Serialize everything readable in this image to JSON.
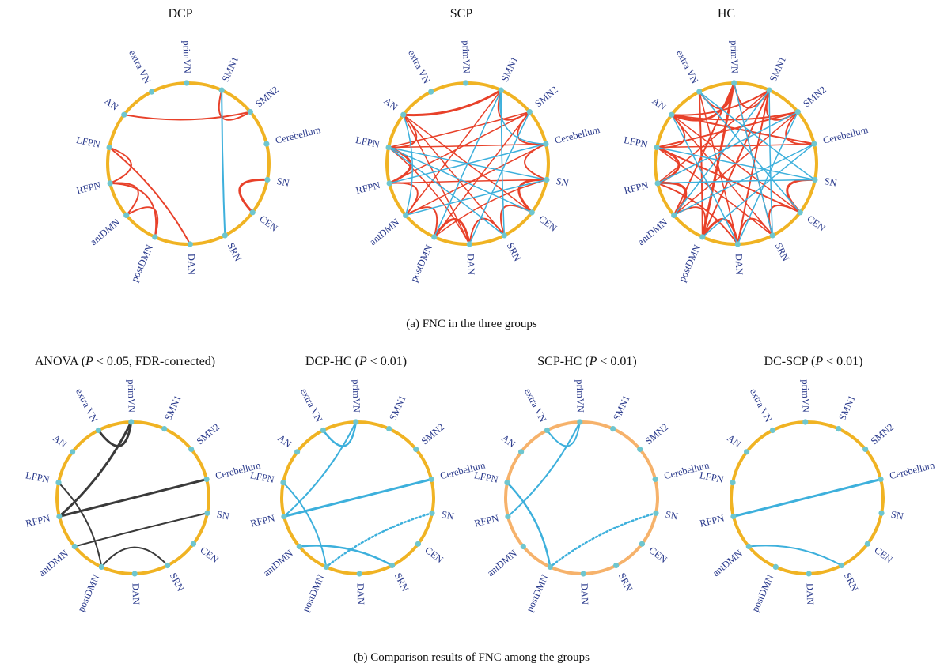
{
  "node_labels": [
    "extra VN",
    "primVN",
    "SMN1",
    "SMN2",
    "Cerebellum",
    "SN",
    "CEN",
    "SRN",
    "DAN",
    "postDMN",
    "antDMN",
    "RFPN",
    "LFPN",
    "AN"
  ],
  "node_keys": [
    "extraVN",
    "primVN",
    "SMN1",
    "SMN2",
    "Cerebellum",
    "SN",
    "CEN",
    "SRN",
    "DAN",
    "postDMN",
    "antDMN",
    "RFPN",
    "LFPN",
    "AN"
  ],
  "colors": {
    "ring": "#f0b323",
    "ring_light": "#f6b26b",
    "node": "#6ec6cf",
    "positive": "#e8412a",
    "negative": "#3db0dc",
    "anova": "#3a3a3a",
    "label": "#2a3a8c"
  },
  "captions": {
    "a": "(a) FNC in the three groups",
    "b": "(b) Comparison results of FNC among the groups"
  },
  "panels": [
    {
      "id": "dcp",
      "title": [
        {
          "t": "DCP"
        }
      ],
      "ring": "ring",
      "edges": [
        [
          "AN",
          "SMN2",
          "positive",
          2
        ],
        [
          "SMN1",
          "SMN2",
          "positive",
          2
        ],
        [
          "SMN1",
          "SRN",
          "negative",
          2
        ],
        [
          "SN",
          "CEN",
          "positive",
          3
        ],
        [
          "LFPN",
          "RFPN",
          "positive",
          2
        ],
        [
          "LFPN",
          "DAN",
          "positive",
          2
        ],
        [
          "RFPN",
          "antDMN",
          "positive",
          2
        ],
        [
          "antDMN",
          "postDMN",
          "positive",
          2
        ],
        [
          "RFPN",
          "postDMN",
          "positive",
          2
        ]
      ]
    },
    {
      "id": "scp",
      "title": [
        {
          "t": "SCP"
        }
      ],
      "ring": "ring",
      "edges": [
        [
          "AN",
          "SMN1",
          "positive",
          3
        ],
        [
          "SMN1",
          "SMN2",
          "positive",
          2
        ],
        [
          "SMN2",
          "Cerebellum",
          "positive",
          2
        ],
        [
          "Cerebellum",
          "SN",
          "positive",
          2
        ],
        [
          "SN",
          "CEN",
          "positive",
          3
        ],
        [
          "CEN",
          "SRN",
          "positive",
          2
        ],
        [
          "SRN",
          "DAN",
          "positive",
          2
        ],
        [
          "DAN",
          "postDMN",
          "positive",
          3
        ],
        [
          "postDMN",
          "antDMN",
          "positive",
          2
        ],
        [
          "antDMN",
          "RFPN",
          "positive",
          2
        ],
        [
          "RFPN",
          "LFPN",
          "positive",
          3
        ],
        [
          "LFPN",
          "AN",
          "positive",
          2
        ],
        [
          "AN",
          "SRN",
          "positive",
          1.5
        ],
        [
          "AN",
          "CEN",
          "positive",
          1.5
        ],
        [
          "LFPN",
          "Cerebellum",
          "positive",
          1.5
        ],
        [
          "LFPN",
          "SMN2",
          "positive",
          1.5
        ],
        [
          "RFPN",
          "SN",
          "positive",
          1.5
        ],
        [
          "RFPN",
          "SMN2",
          "positive",
          1.5
        ],
        [
          "antDMN",
          "Cerebellum",
          "positive",
          1.5
        ],
        [
          "antDMN",
          "SMN1",
          "positive",
          1.5
        ],
        [
          "postDMN",
          "SMN2",
          "positive",
          1.5
        ],
        [
          "postDMN",
          "SN",
          "positive",
          1.5
        ],
        [
          "DAN",
          "AN",
          "positive",
          1.5
        ],
        [
          "DAN",
          "LFPN",
          "positive",
          1.5
        ],
        [
          "SRN",
          "SMN1",
          "negative",
          1.5
        ],
        [
          "SRN",
          "LFPN",
          "negative",
          1.5
        ],
        [
          "LFPN",
          "SN",
          "negative",
          1.5
        ],
        [
          "AN",
          "antDMN",
          "negative",
          1.5
        ],
        [
          "SMN1",
          "postDMN",
          "negative",
          1.5
        ],
        [
          "Cerebellum",
          "RFPN",
          "negative",
          1.5
        ],
        [
          "CEN",
          "LFPN",
          "negative",
          1.5
        ],
        [
          "SN",
          "antDMN",
          "negative",
          1.5
        ],
        [
          "SMN1",
          "Cerebellum",
          "negative",
          1.5
        ],
        [
          "DAN",
          "SMN2",
          "negative",
          1.5
        ]
      ]
    },
    {
      "id": "hc",
      "title": [
        {
          "t": "HC"
        }
      ],
      "ring": "ring",
      "edges": [
        [
          "AN",
          "primVN",
          "positive",
          3
        ],
        [
          "AN",
          "SMN1",
          "positive",
          2
        ],
        [
          "AN",
          "SMN2",
          "positive",
          2
        ],
        [
          "AN",
          "Cerebellum",
          "positive",
          2
        ],
        [
          "extraVN",
          "primVN",
          "positive",
          2
        ],
        [
          "primVN",
          "SMN1",
          "positive",
          2
        ],
        [
          "SMN1",
          "SMN2",
          "positive",
          2
        ],
        [
          "SMN2",
          "Cerebellum",
          "positive",
          2
        ],
        [
          "SN",
          "CEN",
          "positive",
          3
        ],
        [
          "CEN",
          "SRN",
          "positive",
          2
        ],
        [
          "SRN",
          "DAN",
          "positive",
          2
        ],
        [
          "DAN",
          "postDMN",
          "positive",
          3
        ],
        [
          "postDMN",
          "antDMN",
          "positive",
          2
        ],
        [
          "antDMN",
          "RFPN",
          "positive",
          3
        ],
        [
          "RFPN",
          "LFPN",
          "positive",
          3
        ],
        [
          "LFPN",
          "AN",
          "positive",
          2
        ],
        [
          "LFPN",
          "SMN2",
          "positive",
          2
        ],
        [
          "LFPN",
          "Cerebellum",
          "positive",
          1.5
        ],
        [
          "LFPN",
          "SRN",
          "positive",
          1.5
        ],
        [
          "LFPN",
          "CEN",
          "positive",
          2
        ],
        [
          "RFPN",
          "SMN1",
          "positive",
          1.5
        ],
        [
          "RFPN",
          "DAN",
          "positive",
          2
        ],
        [
          "antDMN",
          "primVN",
          "positive",
          2
        ],
        [
          "antDMN",
          "SMN2",
          "positive",
          1.5
        ],
        [
          "postDMN",
          "primVN",
          "positive",
          3
        ],
        [
          "postDMN",
          "SMN1",
          "positive",
          2
        ],
        [
          "DAN",
          "extraVN",
          "positive",
          1.5
        ],
        [
          "DAN",
          "SMN1",
          "positive",
          2
        ],
        [
          "SRN",
          "primVN",
          "positive",
          1.5
        ],
        [
          "SRN",
          "AN",
          "positive",
          1.5
        ],
        [
          "CEN",
          "AN",
          "positive",
          1.5
        ],
        [
          "extraVN",
          "postDMN",
          "positive",
          2
        ],
        [
          "SN",
          "LFPN",
          "negative",
          1.5
        ],
        [
          "SN",
          "RFPN",
          "negative",
          1.5
        ],
        [
          "SMN1",
          "antDMN",
          "negative",
          1.5
        ],
        [
          "SMN2",
          "RFPN",
          "negative",
          1.5
        ],
        [
          "Cerebellum",
          "antDMN",
          "negative",
          1.5
        ],
        [
          "extraVN",
          "CEN",
          "negative",
          1.5
        ],
        [
          "primVN",
          "SRN",
          "negative",
          1.5
        ],
        [
          "AN",
          "DAN",
          "negative",
          1.5
        ],
        [
          "SMN1",
          "SRN",
          "negative",
          1.5
        ],
        [
          "Cerebellum",
          "postDMN",
          "negative",
          1.5
        ],
        [
          "extraVN",
          "SN",
          "negative",
          1.5
        ],
        [
          "SMN2",
          "DAN",
          "negative",
          1.5
        ]
      ]
    },
    {
      "id": "anova",
      "title": [
        {
          "t": "ANOVA ("
        },
        {
          "t": "P",
          "i": true
        },
        {
          "t": " < 0.05, FDR-corrected)"
        }
      ],
      "ring": "ring",
      "edges": [
        [
          "extraVN",
          "primVN",
          "anova",
          3
        ],
        [
          "primVN",
          "RFPN",
          "anova",
          3
        ],
        [
          "RFPN",
          "Cerebellum",
          "anova",
          3
        ],
        [
          "LFPN",
          "postDMN",
          "anova",
          2
        ],
        [
          "SN",
          "antDMN",
          "anova",
          2
        ],
        [
          "postDMN",
          "SRN",
          "anova",
          2
        ]
      ]
    },
    {
      "id": "dcp_hc",
      "title": [
        {
          "t": "DCP-HC ("
        },
        {
          "t": "P",
          "i": true
        },
        {
          "t": " < 0.01)"
        }
      ],
      "ring": "ring",
      "edges": [
        [
          "extraVN",
          "primVN",
          "negative",
          2.5
        ],
        [
          "primVN",
          "RFPN",
          "negative",
          2
        ],
        [
          "RFPN",
          "Cerebellum",
          "negative",
          3
        ],
        [
          "LFPN",
          "postDMN",
          "negative",
          2
        ],
        [
          "antDMN",
          "SRN",
          "negative",
          2.5
        ],
        [
          "SN",
          "postDMN",
          "negative_dotted",
          2.5
        ]
      ]
    },
    {
      "id": "scp_hc",
      "title": [
        {
          "t": "SCP-HC ("
        },
        {
          "t": "P",
          "i": true
        },
        {
          "t": " < 0.01)"
        }
      ],
      "ring": "ring_light",
      "edges": [
        [
          "extraVN",
          "primVN",
          "negative",
          2
        ],
        [
          "primVN",
          "RFPN",
          "negative",
          2
        ],
        [
          "LFPN",
          "postDMN",
          "negative",
          2.5
        ],
        [
          "SN",
          "postDMN",
          "negative_dotted",
          2.5
        ]
      ]
    },
    {
      "id": "dc_scp",
      "title": [
        {
          "t": "DC-SCP ("
        },
        {
          "t": "P",
          "i": true
        },
        {
          "t": " < 0.01)"
        }
      ],
      "ring": "ring",
      "edges": [
        [
          "RFPN",
          "Cerebellum",
          "negative",
          3
        ],
        [
          "antDMN",
          "SRN",
          "negative",
          2
        ]
      ]
    }
  ]
}
